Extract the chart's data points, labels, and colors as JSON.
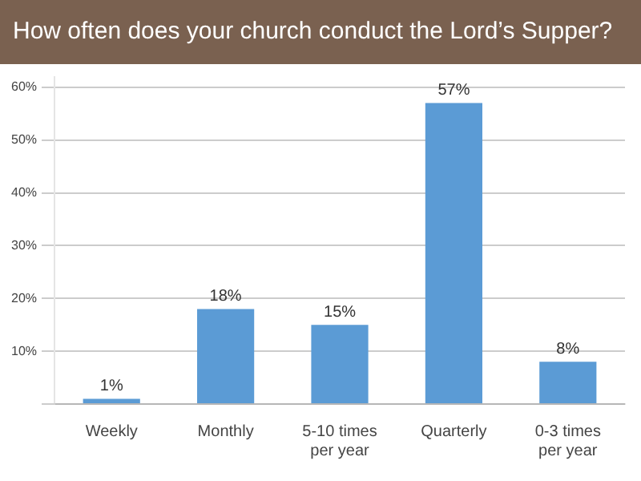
{
  "chart_data": {
    "type": "bar",
    "title": "How often does your church conduct the Lord’s Supper?",
    "categories": [
      "Weekly",
      "Monthly",
      "5-10 times per year",
      "Quarterly",
      "0-3 times per year"
    ],
    "values": [
      1,
      18,
      15,
      57,
      8
    ],
    "color": "#5b9bd5",
    "value_labels": [
      "1%",
      "18%",
      "15%",
      "57%",
      "8%"
    ],
    "ylim": [
      0,
      62
    ],
    "yticks": [
      {
        "value": 0,
        "label": null
      },
      {
        "value": 10,
        "label": "10%"
      },
      {
        "value": 20,
        "label": "20%"
      },
      {
        "value": 30,
        "label": "30%"
      },
      {
        "value": 40,
        "label": "40%"
      },
      {
        "value": 50,
        "label": "50%"
      },
      {
        "value": 60,
        "label": "60%"
      }
    ],
    "grid": "y",
    "legend": false
  }
}
